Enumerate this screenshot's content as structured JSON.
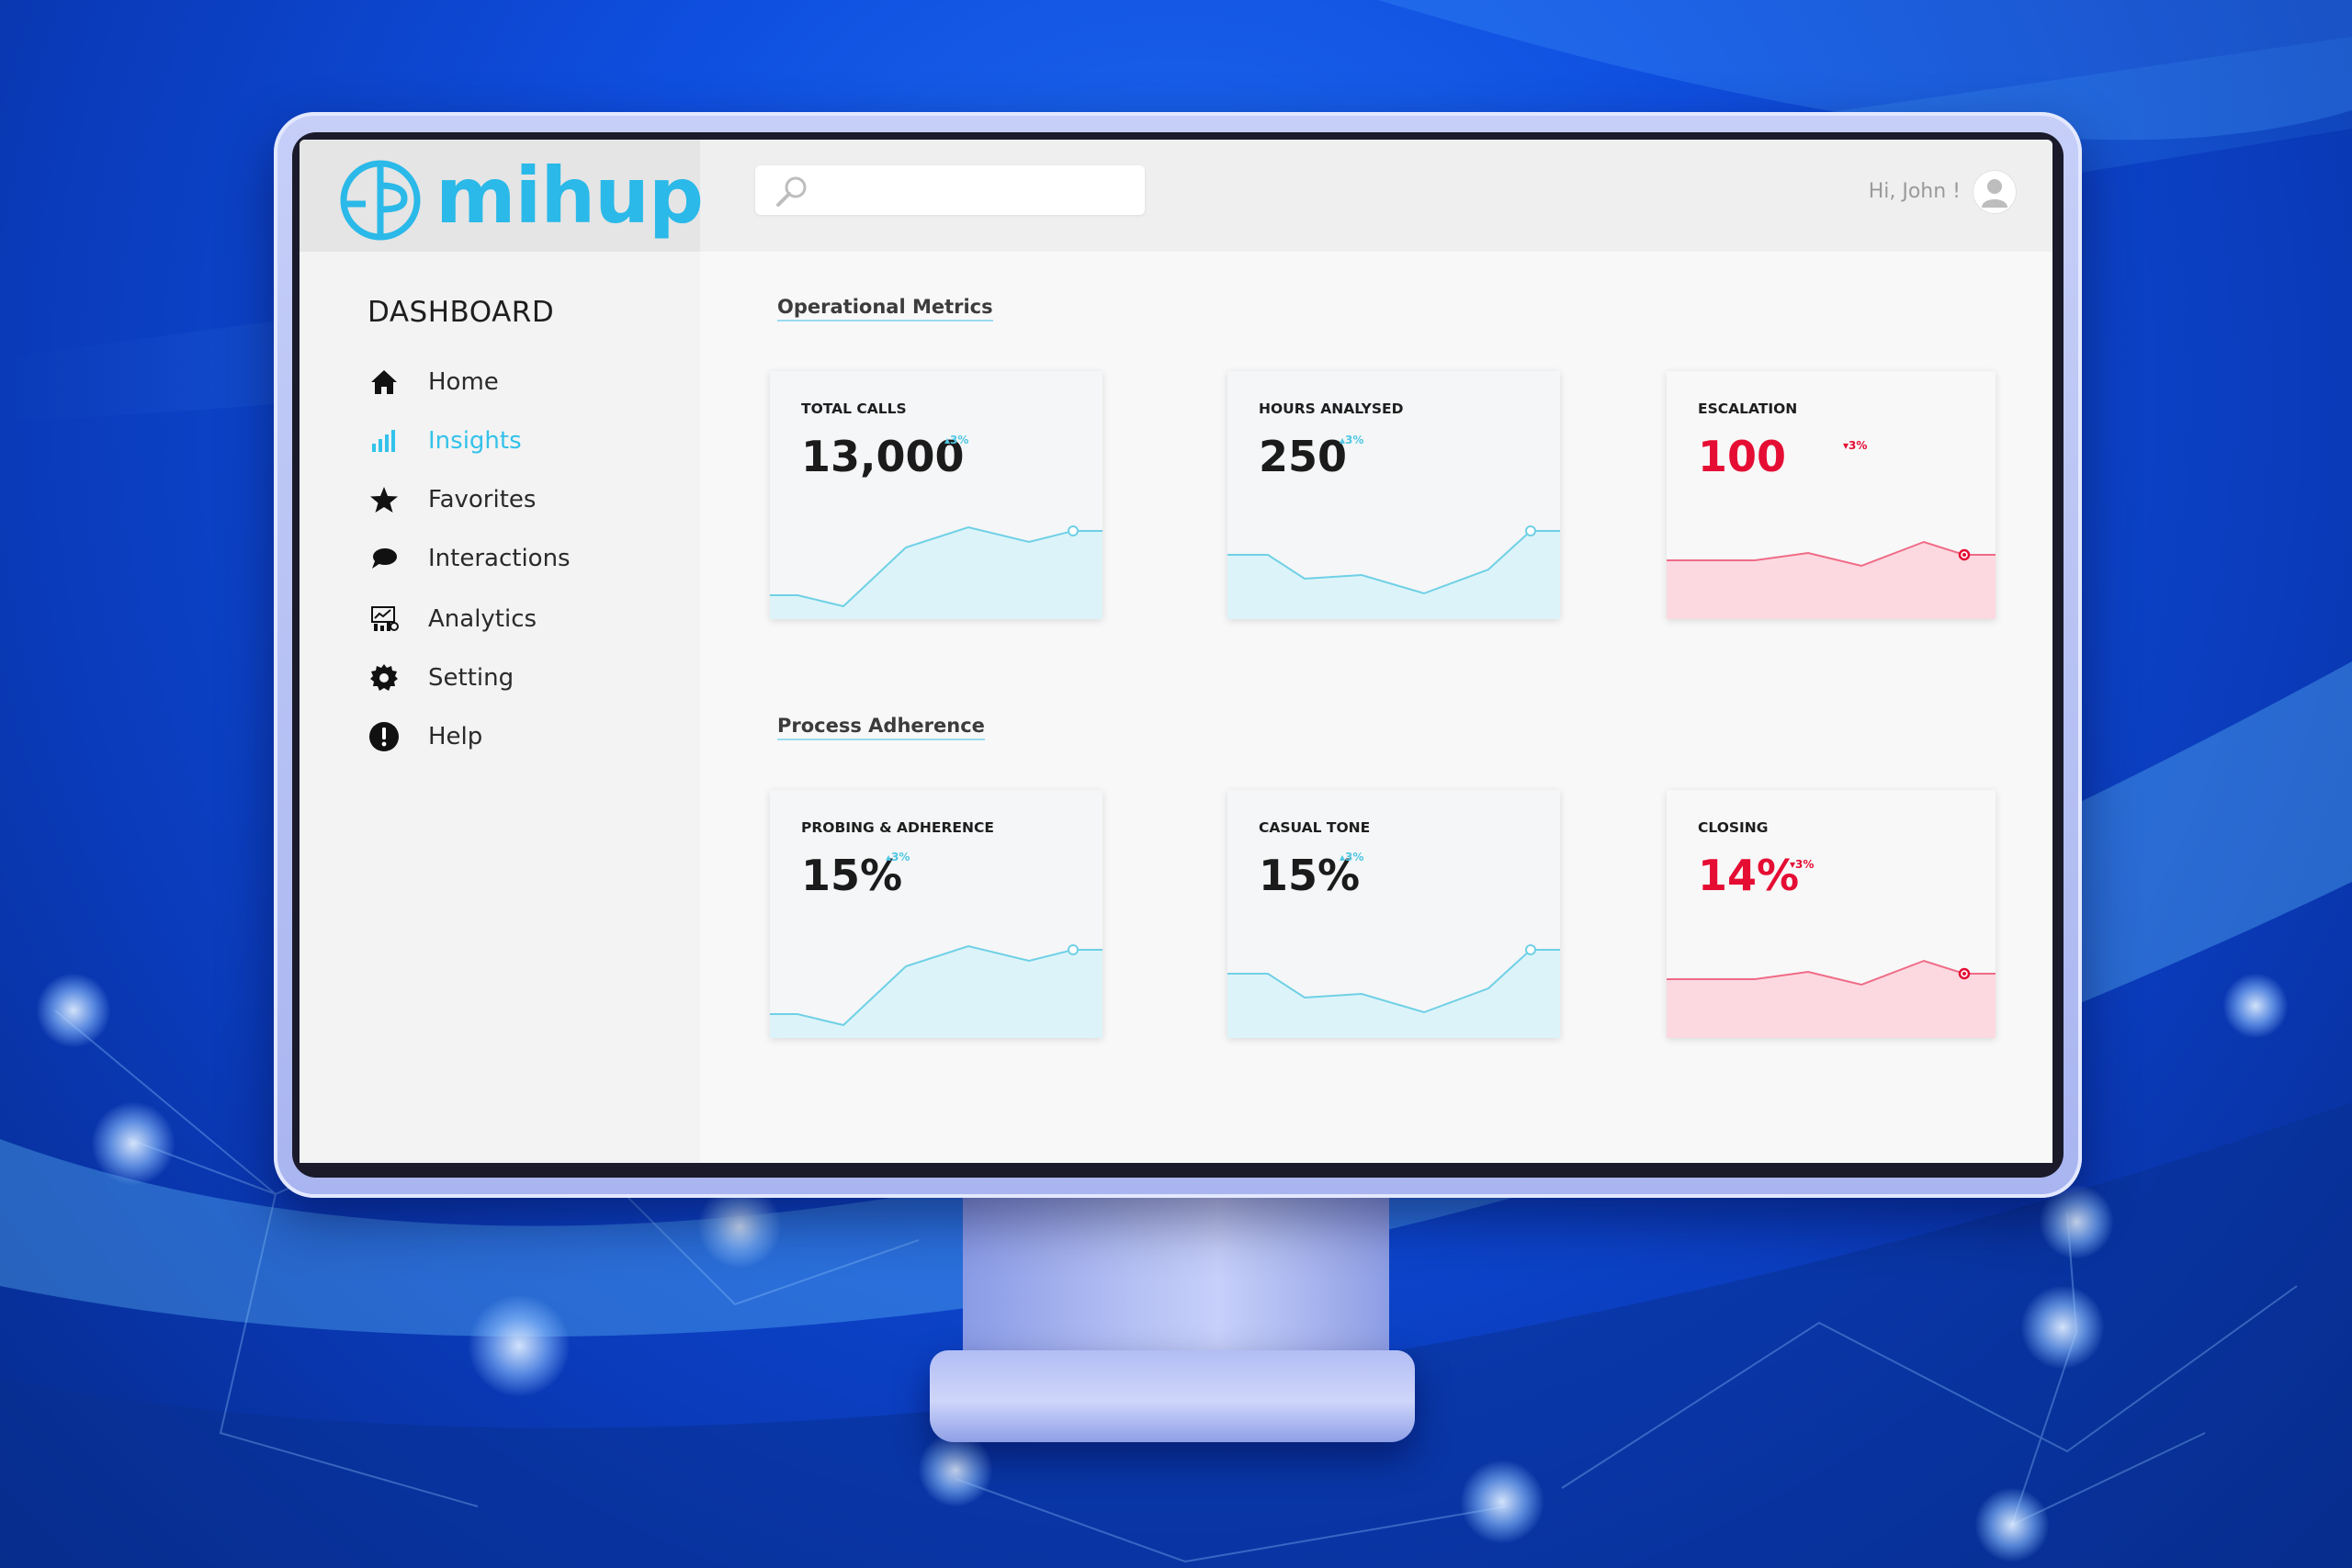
{
  "app": {
    "logo_text": "mihup"
  },
  "header": {
    "search_placeholder": "",
    "greeting": "Hi, John !"
  },
  "sidebar": {
    "title": "DASHBOARD",
    "items": [
      {
        "label": "Home",
        "icon": "home-icon",
        "active": false
      },
      {
        "label": "Insights",
        "icon": "bar-chart-icon",
        "active": true
      },
      {
        "label": "Favorites",
        "icon": "star-icon",
        "active": false
      },
      {
        "label": "Interactions",
        "icon": "chat-bubble-icon",
        "active": false
      },
      {
        "label": "Analytics",
        "icon": "analytics-icon",
        "active": false
      },
      {
        "label": "Setting",
        "icon": "gear-icon",
        "active": false
      },
      {
        "label": "Help",
        "icon": "alert-icon",
        "active": false
      }
    ]
  },
  "sections": [
    {
      "title": "Operational Metrics",
      "cards": [
        {
          "title": "TOTAL CALLS",
          "value": "13,000",
          "delta": "3%",
          "trend": "up",
          "color": "#4fc7e4"
        },
        {
          "title": "HOURS ANALYSED",
          "value": "250",
          "delta": "3%",
          "trend": "up",
          "color": "#4fc7e4"
        },
        {
          "title": "ESCALATION",
          "value": "100",
          "delta": "3%",
          "trend": "down",
          "color": "#e50d33"
        }
      ]
    },
    {
      "title": "Process Adherence",
      "cards": [
        {
          "title": "PROBING & ADHERENCE",
          "value": "15%",
          "delta": "3%",
          "trend": "up",
          "color": "#4fc7e4"
        },
        {
          "title": "CASUAL TONE",
          "value": "15%",
          "delta": "3%",
          "trend": "up",
          "color": "#4fc7e4"
        },
        {
          "title": "CLOSING",
          "value": "14%",
          "delta": "3%",
          "trend": "down",
          "color": "#e50d33"
        }
      ]
    }
  ],
  "colors": {
    "accent": "#33c2ea",
    "negative": "#e50d33",
    "positive_fill": "#dcf4f9",
    "negative_fill": "#fcd9e1"
  }
}
